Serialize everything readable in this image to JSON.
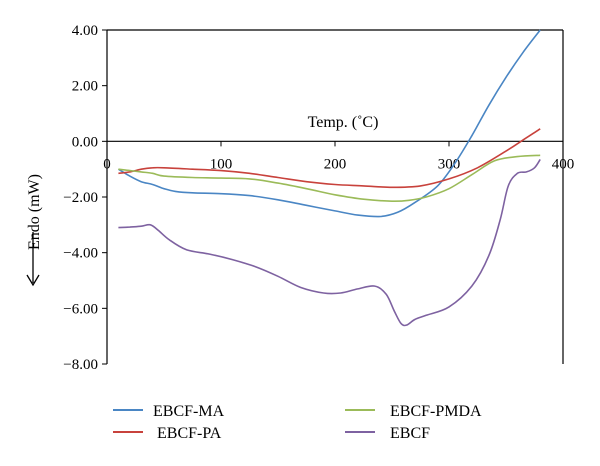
{
  "chart_data": {
    "type": "line",
    "xlabel": "Temp. (˚C)",
    "ylabel": "Endo (mW)",
    "xlim": [
      0,
      400
    ],
    "ylim": [
      -8,
      4
    ],
    "x_ticks": [
      "0",
      "100",
      "200",
      "300",
      "400"
    ],
    "y_ticks": [
      "4.00",
      "2.00",
      "0.00",
      "−2.00",
      "−4.00",
      "−6.00",
      "−8.00"
    ],
    "grid": false,
    "legend_position": "bottom",
    "series": [
      {
        "name": "EBCF-MA",
        "color": "#4a86c4",
        "x": [
          10,
          20,
          30,
          40,
          50,
          60,
          75,
          100,
          125,
          150,
          175,
          200,
          220,
          240,
          255,
          270,
          290,
          305,
          320,
          335,
          350,
          365,
          380
        ],
        "y": [
          -1.0,
          -1.25,
          -1.45,
          -1.55,
          -1.7,
          -1.8,
          -1.85,
          -1.88,
          -1.95,
          -2.1,
          -2.3,
          -2.5,
          -2.65,
          -2.7,
          -2.55,
          -2.2,
          -1.6,
          -0.8,
          0.2,
          1.3,
          2.3,
          3.2,
          4.0
        ]
      },
      {
        "name": "EBCF-PA",
        "color": "#c8423c",
        "x": [
          10,
          20,
          30,
          40,
          50,
          75,
          100,
          125,
          150,
          175,
          200,
          225,
          250,
          275,
          300,
          325,
          350,
          365,
          380
        ],
        "y": [
          -1.15,
          -1.1,
          -1.0,
          -0.95,
          -0.95,
          -1.0,
          -1.05,
          -1.15,
          -1.3,
          -1.45,
          -1.55,
          -1.6,
          -1.65,
          -1.6,
          -1.35,
          -0.95,
          -0.35,
          0.05,
          0.45
        ]
      },
      {
        "name": "EBCF-PMDA",
        "color": "#9bbb59",
        "x": [
          10,
          20,
          30,
          40,
          50,
          75,
          100,
          125,
          150,
          175,
          200,
          225,
          250,
          265,
          280,
          300,
          320,
          340,
          360,
          380
        ],
        "y": [
          -1.0,
          -1.05,
          -1.1,
          -1.15,
          -1.25,
          -1.3,
          -1.32,
          -1.35,
          -1.5,
          -1.7,
          -1.92,
          -2.08,
          -2.15,
          -2.12,
          -2.0,
          -1.7,
          -1.2,
          -0.7,
          -0.55,
          -0.5
        ]
      },
      {
        "name": "EBCF",
        "color": "#7e62a1",
        "x": [
          10,
          20,
          30,
          38,
          45,
          55,
          70,
          90,
          110,
          130,
          150,
          170,
          190,
          205,
          220,
          235,
          245,
          252,
          258,
          263,
          270,
          280,
          300,
          320,
          335,
          345,
          352,
          360,
          368,
          375,
          380
        ],
        "y": [
          -3.1,
          -3.08,
          -3.05,
          -3.0,
          -3.2,
          -3.55,
          -3.9,
          -4.05,
          -4.25,
          -4.5,
          -4.85,
          -5.25,
          -5.45,
          -5.45,
          -5.3,
          -5.2,
          -5.5,
          -6.1,
          -6.55,
          -6.6,
          -6.4,
          -6.25,
          -5.95,
          -5.2,
          -4.1,
          -2.8,
          -1.6,
          -1.15,
          -1.1,
          -0.95,
          -0.65
        ]
      }
    ]
  }
}
